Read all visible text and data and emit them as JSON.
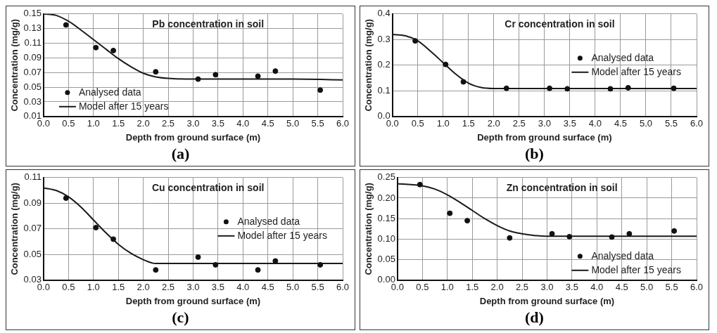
{
  "chart_data": [
    {
      "type": "scatter",
      "title": "Pb concentration in soil",
      "xlabel": "Depth from ground surface (m)",
      "ylabel": "Concentration (mg/g)",
      "annotations": [
        "(a)"
      ],
      "xlim": [
        0,
        6
      ],
      "xticks": [
        {
          "value": 0,
          "label": "0.0"
        },
        0.5,
        {
          "value": 1,
          "label": "1.0"
        },
        1.5,
        {
          "value": 2,
          "label": "2.0"
        },
        2.5,
        {
          "value": 3,
          "label": "3.0"
        },
        3.5,
        {
          "value": 4,
          "label": "4.0"
        },
        4.5,
        {
          "value": 5,
          "label": "5.0"
        },
        5.5,
        {
          "value": 6,
          "label": "6.0"
        }
      ],
      "ylim": [
        0.01,
        0.15
      ],
      "yticks": [
        0.01,
        0.03,
        0.05,
        0.07,
        0.09,
        0.11,
        0.13,
        0.15
      ],
      "grid": true,
      "legend": "bottom left",
      "series": [
        {
          "name": "Analysed data",
          "marker": "circle",
          "color": "#111111",
          "x": [
            0.45,
            1.05,
            1.4,
            2.25,
            3.1,
            3.45,
            4.3,
            4.65,
            5.55
          ],
          "values": [
            0.135,
            0.104,
            0.1,
            0.071,
            0.061,
            0.067,
            0.065,
            0.072,
            0.046
          ]
        },
        {
          "name": "Model after 15 years",
          "type": "line",
          "marker": "none",
          "line_style": "solid",
          "color": "#1a1a1a",
          "x": [
            0,
            0.25,
            0.5,
            0.75,
            1,
            1.25,
            1.5,
            1.75,
            2,
            2.25,
            2.5,
            3,
            4,
            5,
            6
          ],
          "values": [
            0.15,
            0.148,
            0.14,
            0.128,
            0.115,
            0.102,
            0.089,
            0.078,
            0.069,
            0.064,
            0.062,
            0.061,
            0.061,
            0.061,
            0.06
          ]
        }
      ]
    },
    {
      "type": "scatter",
      "title": "Cr concentration in soil",
      "xlabel": "Depth from ground surface (m)",
      "ylabel": "Concentration (mg/g)",
      "annotations": [
        "(b)"
      ],
      "xlim": [
        0,
        6
      ],
      "xticks": [
        {
          "value": 0,
          "label": "0.0"
        },
        0.5,
        {
          "value": 1,
          "label": "1.0"
        },
        1.5,
        {
          "value": 2,
          "label": "2.0"
        },
        2.5,
        {
          "value": 3,
          "label": "3.0"
        },
        3.5,
        {
          "value": 4,
          "label": "4.0"
        },
        4.5,
        {
          "value": 5,
          "label": "5.0"
        },
        5.5,
        {
          "value": 6,
          "label": "6.0"
        }
      ],
      "ylim": [
        0,
        0.4
      ],
      "yticks": [
        {
          "value": 0,
          "label": "0.0"
        },
        0.1,
        0.2,
        0.3,
        0.4
      ],
      "grid": true,
      "legend": "right",
      "series": [
        {
          "name": "Analysed data",
          "marker": "circle",
          "color": "#111111",
          "x": [
            0.45,
            1.05,
            1.4,
            2.25,
            3.1,
            3.45,
            4.3,
            4.65,
            5.55
          ],
          "values": [
            0.295,
            0.203,
            0.135,
            0.11,
            0.11,
            0.108,
            0.108,
            0.112,
            0.11
          ]
        },
        {
          "name": "Model after 15 years",
          "type": "line",
          "marker": "none",
          "line_style": "solid",
          "color": "#1a1a1a",
          "x": [
            0,
            0.25,
            0.5,
            0.75,
            1,
            1.25,
            1.5,
            1.75,
            2,
            3,
            4,
            5,
            6
          ],
          "values": [
            0.32,
            0.315,
            0.295,
            0.255,
            0.21,
            0.165,
            0.13,
            0.113,
            0.109,
            0.109,
            0.109,
            0.109,
            0.109
          ]
        }
      ]
    },
    {
      "type": "scatter",
      "title": "Cu concentration in soil",
      "xlabel": "Depth from ground surface (m)",
      "ylabel": "Concentration (mg/g)",
      "annotations": [
        "(c)"
      ],
      "xlim": [
        0,
        6
      ],
      "xticks": [
        {
          "value": 0,
          "label": "0.0"
        },
        0.5,
        {
          "value": 1,
          "label": "1.0"
        },
        1.5,
        {
          "value": 2,
          "label": "2.0"
        },
        2.5,
        {
          "value": 3,
          "label": "3.0"
        },
        3.5,
        {
          "value": 4,
          "label": "4.0"
        },
        4.5,
        {
          "value": 5,
          "label": "5.0"
        },
        5.5,
        {
          "value": 6,
          "label": "6.0"
        }
      ],
      "ylim": [
        0.03,
        0.11
      ],
      "yticks": [
        0.03,
        0.05,
        0.07,
        0.09,
        0.11
      ],
      "grid": true,
      "legend": "right",
      "series": [
        {
          "name": "Analysed data",
          "marker": "circle",
          "color": "#111111",
          "x": [
            0.45,
            1.05,
            1.4,
            2.25,
            3.1,
            3.45,
            4.3,
            4.65,
            5.55
          ],
          "values": [
            0.094,
            0.071,
            0.062,
            0.038,
            0.048,
            0.042,
            0.038,
            0.045,
            0.042
          ]
        },
        {
          "name": "Model after 15 years",
          "type": "line",
          "marker": "none",
          "line_style": "solid",
          "color": "#1a1a1a",
          "x": [
            0,
            0.25,
            0.5,
            0.75,
            1,
            1.25,
            1.5,
            1.75,
            2,
            2.25,
            2.5,
            4,
            6
          ],
          "values": [
            0.102,
            0.1,
            0.095,
            0.087,
            0.077,
            0.067,
            0.058,
            0.051,
            0.046,
            0.043,
            0.043,
            0.043,
            0.043
          ]
        }
      ]
    },
    {
      "type": "scatter",
      "title": "Zn concentration in soil",
      "xlabel": "Depth from ground surface (m)",
      "ylabel": "Concentration (mg/g)",
      "annotations": [
        "(d)"
      ],
      "xlim": [
        0,
        6
      ],
      "xticks": [
        {
          "value": 0,
          "label": "0.0"
        },
        0.5,
        {
          "value": 1,
          "label": "1.0"
        },
        1.5,
        {
          "value": 2,
          "label": "2.0"
        },
        2.5,
        {
          "value": 3,
          "label": "3.0"
        },
        3.5,
        {
          "value": 4,
          "label": "4.0"
        },
        4.5,
        {
          "value": 5,
          "label": "5.0"
        },
        5.5,
        {
          "value": 6,
          "label": "6.0"
        }
      ],
      "ylim": [
        0,
        0.25
      ],
      "yticks": [
        {
          "value": 0,
          "label": "0.00"
        },
        0.05,
        {
          "value": 0.1,
          "label": "0.10"
        },
        0.15,
        {
          "value": 0.2,
          "label": "0.20"
        },
        0.25
      ],
      "grid": true,
      "legend": "bottom right",
      "series": [
        {
          "name": "Analysed data",
          "marker": "circle",
          "color": "#111111",
          "x": [
            0.45,
            1.05,
            1.4,
            2.25,
            3.1,
            3.45,
            4.3,
            4.65,
            5.55
          ],
          "values": [
            0.233,
            0.163,
            0.145,
            0.103,
            0.113,
            0.106,
            0.105,
            0.113,
            0.12
          ]
        },
        {
          "name": "Model after 15 years",
          "type": "line",
          "marker": "none",
          "line_style": "solid",
          "color": "#1a1a1a",
          "x": [
            0,
            0.5,
            0.75,
            1,
            1.25,
            1.5,
            1.75,
            2,
            2.25,
            2.5,
            2.75,
            3,
            4,
            6
          ],
          "values": [
            0.235,
            0.23,
            0.222,
            0.208,
            0.19,
            0.17,
            0.15,
            0.133,
            0.12,
            0.113,
            0.109,
            0.107,
            0.107,
            0.107
          ]
        }
      ]
    }
  ]
}
